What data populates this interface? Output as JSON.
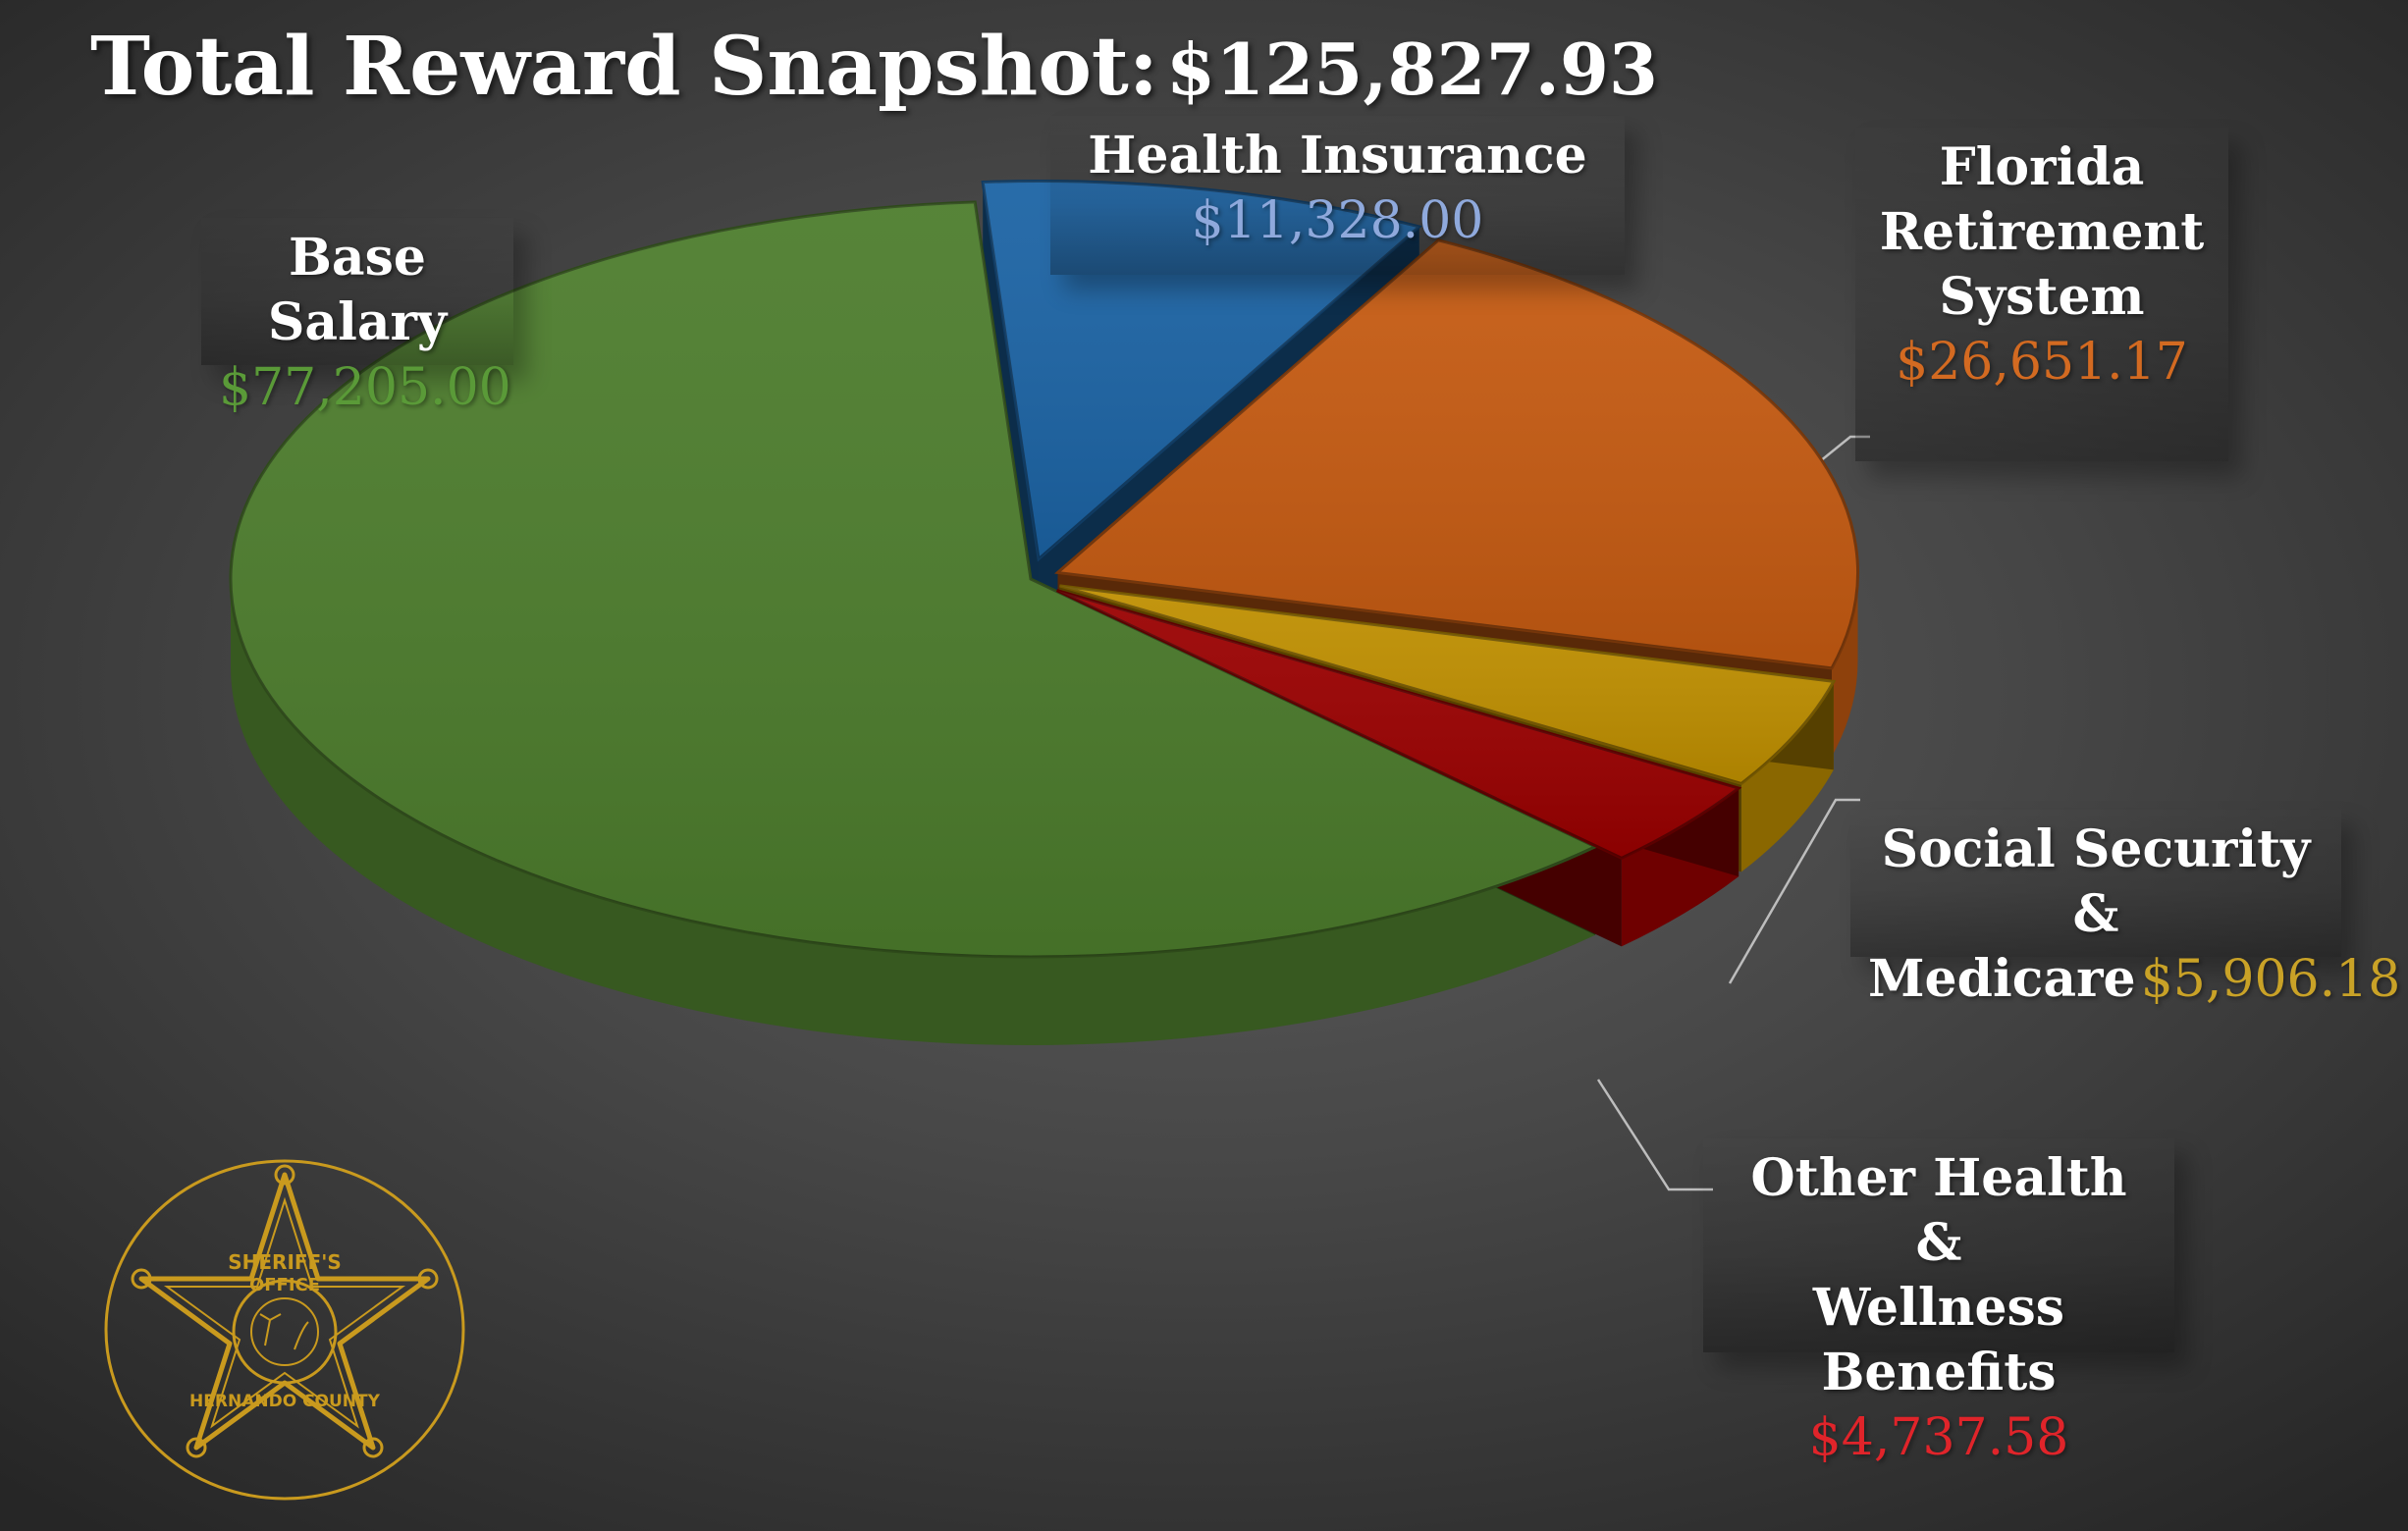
{
  "title": "Total Reward Snapshot:",
  "total": "$125,827.93",
  "colors": {
    "base_salary": "#4c7c2c",
    "health_insurance": "#1b63a4",
    "florida_retirement": "#c55a11",
    "social_security": "#bf8f00",
    "other_health": "#9a0000"
  },
  "labels": {
    "base_salary": {
      "name": "Base Salary",
      "value": "$77,205.00",
      "color": "#5a9a38"
    },
    "health_insurance": {
      "name": "Health Insurance",
      "value": "$11,328.00",
      "color": "#8fa9dc"
    },
    "florida_retirement": {
      "name_1": "Florida",
      "name_2": "Retirement",
      "name_3": "System",
      "value": "$26,651.17",
      "color": "#d36a21"
    },
    "social_security": {
      "name_1": "Social Security &",
      "name_2": "Medicare",
      "value": "$5,906.18",
      "color": "#c9a227"
    },
    "other_health": {
      "name_1": "Other Health &",
      "name_2": "Wellness Benefits",
      "value": "$4,737.58",
      "color": "#e0242a"
    }
  },
  "seal": {
    "top_text": "SHERIFF'S",
    "mid_text": "OFFICE",
    "bottom_text": "HERNANDO COUNTY",
    "color": "#c99a1e"
  },
  "chart_data": {
    "type": "pie",
    "title": "Total Reward Snapshot:",
    "total": 125827.93,
    "categories": [
      "Base Salary",
      "Health Insurance",
      "Florida Retirement System",
      "Social Security & Medicare",
      "Other Health & Wellness Benefits"
    ],
    "values": [
      77205.0,
      11328.0,
      26651.17,
      5906.18,
      4737.58
    ],
    "colors": [
      "#4c7c2c",
      "#1b63a4",
      "#c55a11",
      "#bf8f00",
      "#9a0000"
    ],
    "style": "3d-exploded"
  }
}
